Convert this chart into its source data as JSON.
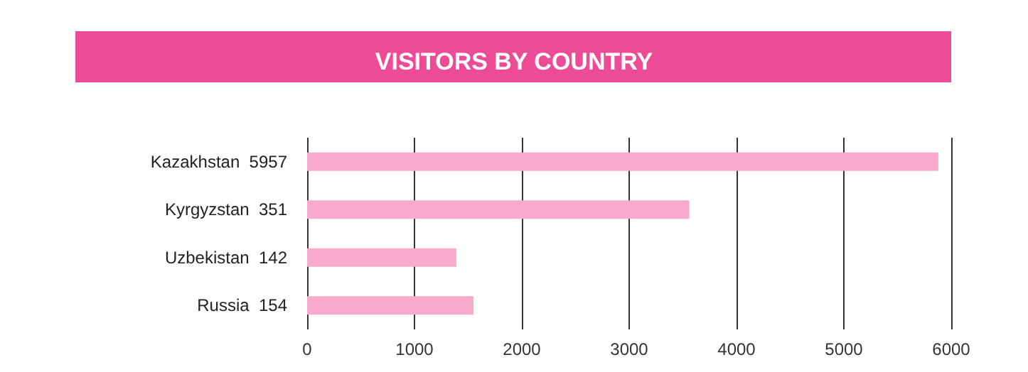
{
  "chart_data": {
    "type": "bar",
    "orientation": "horizontal",
    "title": "VISITORS BY COUNTRY",
    "categories": [
      "Kazakhstan  5957",
      "Kyrgyzstan  351",
      "Uzbekistan  142",
      "Russia  154"
    ],
    "values": [
      5880,
      3560,
      1390,
      1550
    ],
    "color": "#f7aacb",
    "xlim": [
      0,
      6000
    ],
    "xticks": [
      0,
      1000,
      2000,
      3000,
      4000,
      5000,
      6000
    ],
    "grid": "x"
  }
}
